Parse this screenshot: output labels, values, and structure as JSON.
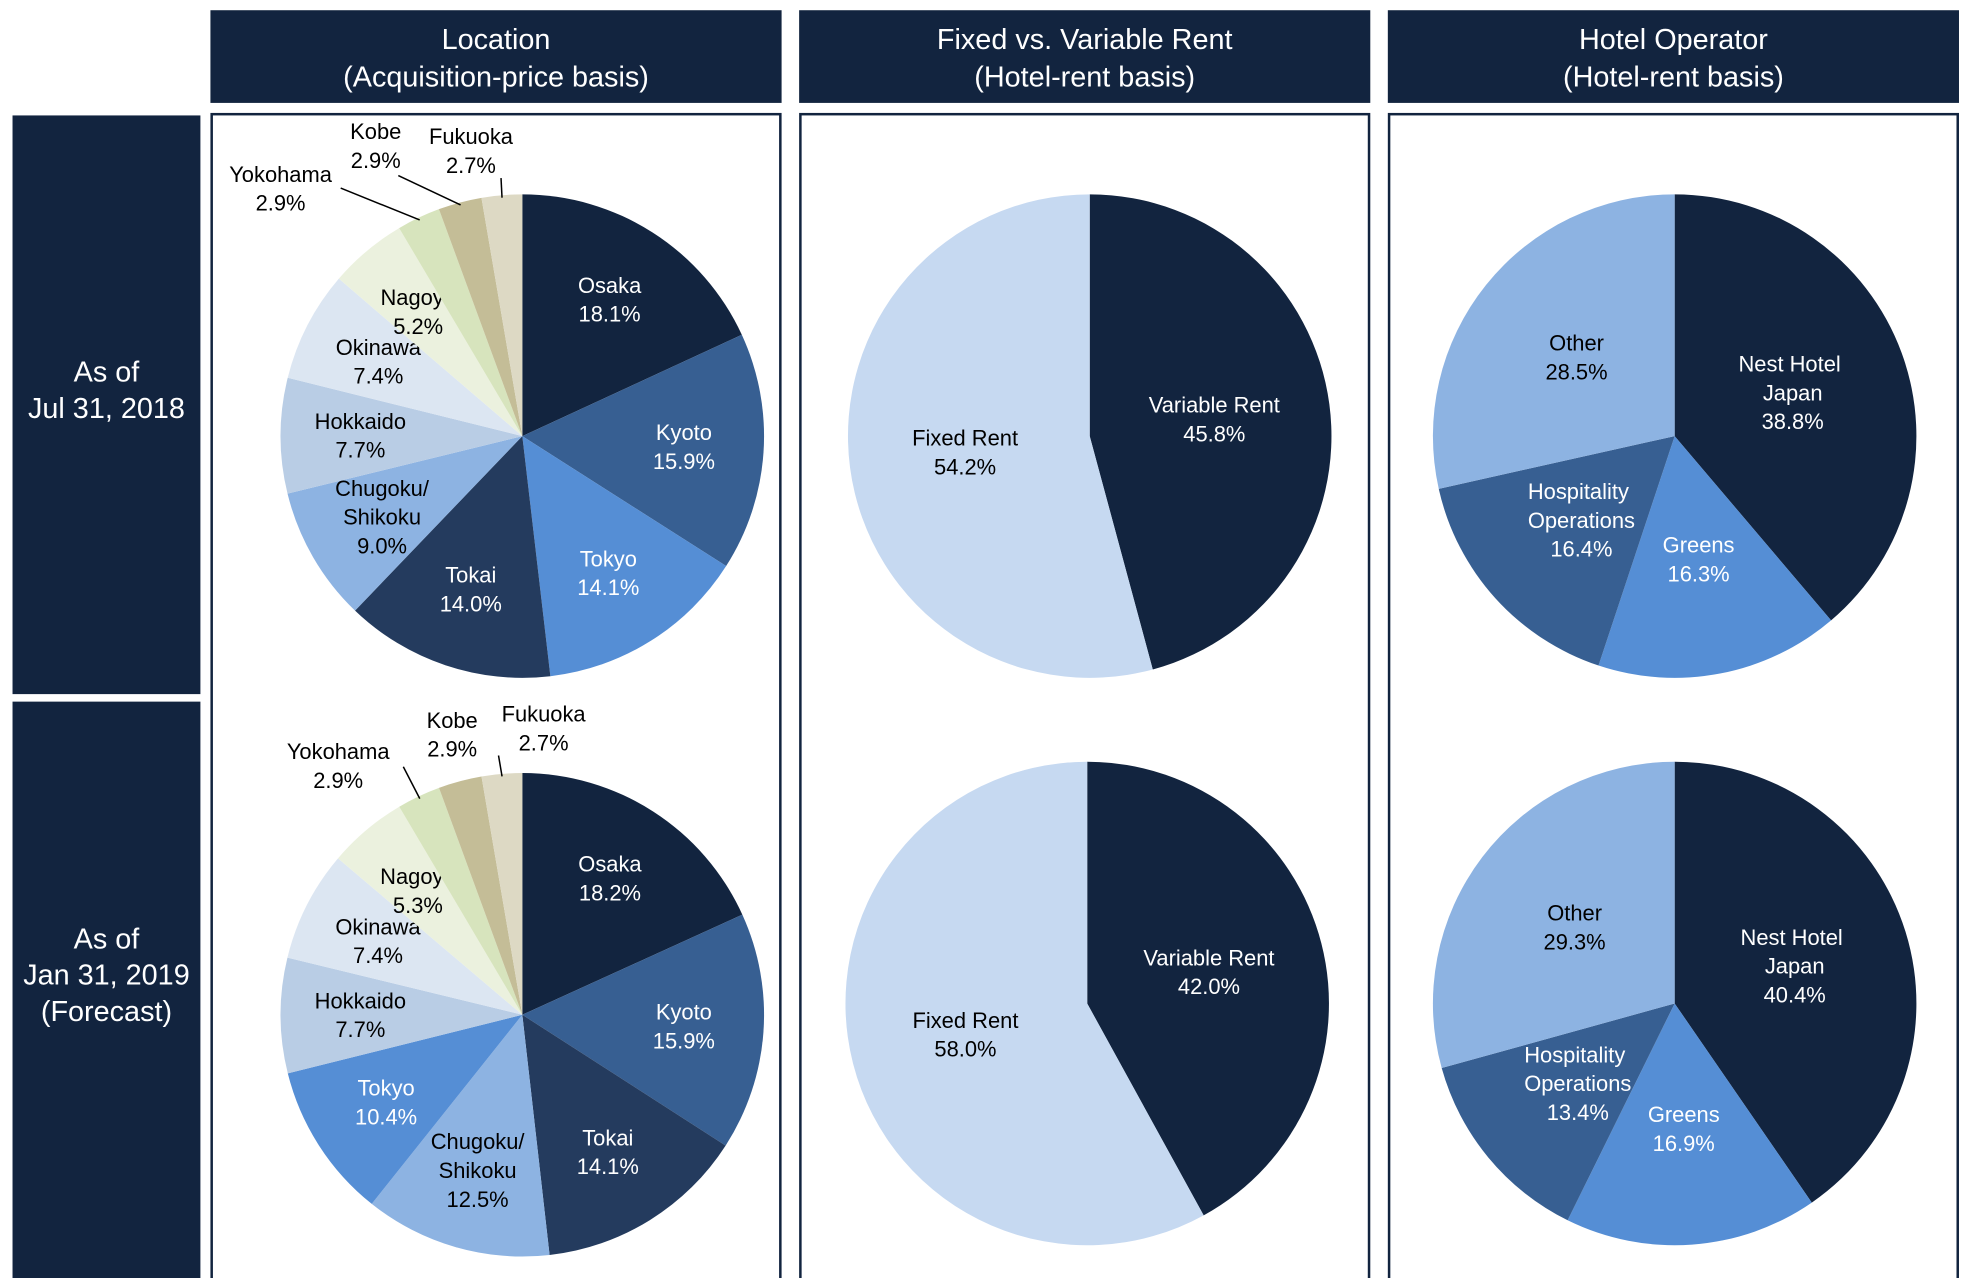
{
  "columns": [
    [
      "Location",
      "(Acquisition-price basis)"
    ],
    [
      "Fixed vs. Variable Rent",
      "(Hotel-rent basis)"
    ],
    [
      "Hotel Operator",
      "(Hotel-rent basis)"
    ]
  ],
  "rows": [
    [
      "As of",
      "Jul 31, 2018"
    ],
    [
      "As of",
      "Jan 31, 2019",
      "(Forecast)"
    ]
  ],
  "chart_data": [
    {
      "type": "pie",
      "categories": [
        "Osaka",
        "Kyoto",
        "Tokyo",
        "Tokai",
        "Chugoku/Shikoku",
        "Hokkaido",
        "Okinawa",
        "Nagoya",
        "Yokohama",
        "Kobe",
        "Fukuoka"
      ],
      "values": [
        18.1,
        15.9,
        14.1,
        14.0,
        9.0,
        7.7,
        7.4,
        5.2,
        2.9,
        2.9,
        2.7
      ],
      "value_labels": [
        "18.1%",
        "15.9%",
        "14.1%",
        "14.0%",
        "9.0%",
        "7.7%",
        "7.4%",
        "5.2%",
        "2.9%",
        "2.9%",
        "2.7%"
      ],
      "colors": [
        "#12243f",
        "#375f92",
        "#558ed5",
        "#243b5e",
        "#8db3e2",
        "#b9cde5",
        "#dce6f2",
        "#ebf1de",
        "#d7e4bd",
        "#c4bd97",
        "#ddd9c4"
      ]
    },
    {
      "type": "pie",
      "categories": [
        "Variable Rent",
        "Fixed Rent"
      ],
      "values": [
        45.8,
        54.2
      ],
      "value_labels": [
        "45.8%",
        "54.2%"
      ],
      "colors": [
        "#12243f",
        "#c6d9f1"
      ]
    },
    {
      "type": "pie",
      "categories": [
        "Nest Hotel Japan",
        "Greens",
        "Hospitality Operations",
        "Other"
      ],
      "values": [
        38.8,
        16.3,
        16.4,
        28.5
      ],
      "value_labels": [
        "38.8%",
        "16.3%",
        "16.4%",
        "28.5%"
      ],
      "colors": [
        "#12243f",
        "#558ed5",
        "#375f92",
        "#8db3e2"
      ]
    },
    {
      "type": "pie",
      "categories": [
        "Osaka",
        "Kyoto",
        "Tokai",
        "Chugoku/Shikoku",
        "Tokyo",
        "Hokkaido",
        "Okinawa",
        "Nagoya",
        "Yokohama",
        "Kobe",
        "Fukuoka"
      ],
      "values": [
        18.2,
        15.9,
        14.1,
        12.5,
        10.4,
        7.7,
        7.4,
        5.3,
        2.9,
        2.9,
        2.7
      ],
      "value_labels": [
        "18.2%",
        "15.9%",
        "14.1%",
        "12.5%",
        "10.4%",
        "7.7%",
        "7.4%",
        "5.3%",
        "2.9%",
        "2.9%",
        "2.7%"
      ],
      "colors": [
        "#12243f",
        "#375f92",
        "#243b5e",
        "#8db3e2",
        "#558ed5",
        "#b9cde5",
        "#dce6f2",
        "#ebf1de",
        "#d7e4bd",
        "#c4bd97",
        "#ddd9c4"
      ]
    },
    {
      "type": "pie",
      "categories": [
        "Variable Rent",
        "Fixed Rent"
      ],
      "values": [
        42.0,
        58.0
      ],
      "value_labels": [
        "42.0%",
        "58.0%"
      ],
      "colors": [
        "#12243f",
        "#c6d9f1"
      ]
    },
    {
      "type": "pie",
      "categories": [
        "Nest Hotel Japan",
        "Greens",
        "Hospitality Operations",
        "Other"
      ],
      "values": [
        40.4,
        16.9,
        13.4,
        29.3
      ],
      "value_labels": [
        "40.4%",
        "16.9%",
        "13.4%",
        "29.3%"
      ],
      "colors": [
        "#12243f",
        "#558ed5",
        "#375f92",
        "#8db3e2"
      ]
    }
  ]
}
